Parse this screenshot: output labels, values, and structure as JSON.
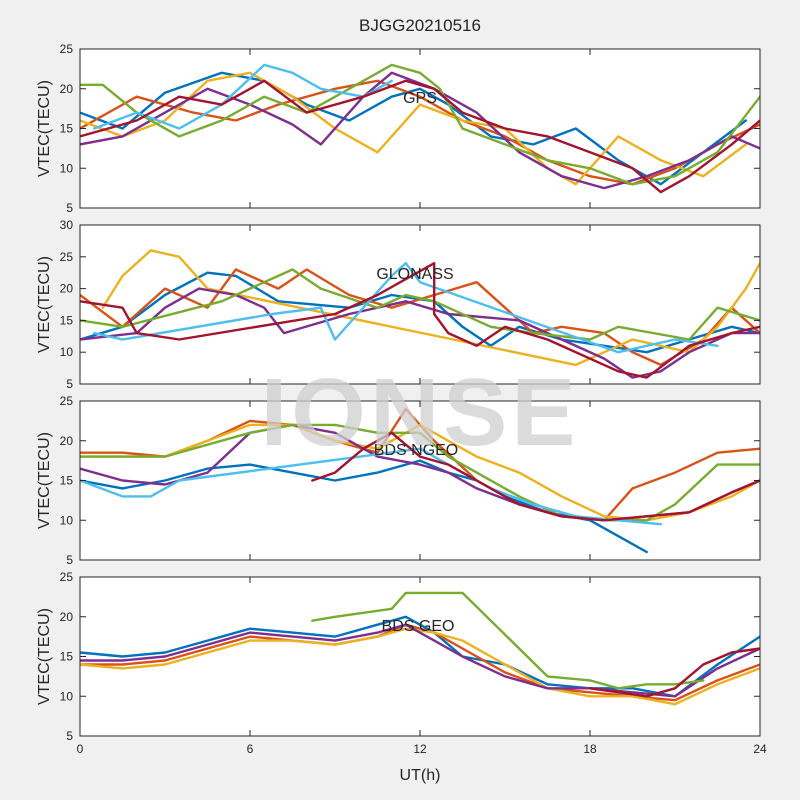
{
  "figure": {
    "title": "BJGG20210516",
    "xlabel": "UT(h)",
    "watermark": "IONSE"
  },
  "chart_data": [
    {
      "type": "line",
      "panel_label": "GPS",
      "ylabel": "VTEC(TECU)",
      "xlim": [
        0,
        24
      ],
      "ylim": [
        5,
        25
      ],
      "xticks": [
        0,
        6,
        12,
        18,
        24
      ],
      "yticks": [
        5,
        10,
        15,
        20,
        25
      ],
      "grid": false,
      "series": [
        {
          "color": "#0072BD",
          "x": [
            0,
            1.5,
            3,
            5,
            6.5,
            8,
            9.5,
            11,
            12,
            13,
            14.5,
            16,
            17.5,
            19,
            20.5,
            22,
            23.5
          ],
          "y": [
            17,
            15,
            19.5,
            22,
            21,
            18,
            16,
            19,
            20,
            18,
            14,
            13,
            15,
            11,
            8,
            12,
            16
          ]
        },
        {
          "color": "#D95319",
          "x": [
            0,
            2,
            4,
            5.5,
            7,
            9,
            10.5,
            12,
            13.5,
            15,
            16.5,
            18,
            19.5,
            21,
            22.5,
            24
          ],
          "y": [
            15,
            19,
            17,
            16,
            18,
            20,
            21,
            19,
            16,
            14,
            11,
            9,
            8,
            10,
            13,
            15.5
          ]
        },
        {
          "color": "#EDB120",
          "x": [
            0,
            1.5,
            3,
            4.5,
            6,
            7.5,
            9,
            10.5,
            12,
            13.5,
            15,
            16.5,
            17.5,
            19,
            20.5,
            22,
            23.5
          ],
          "y": [
            16,
            14,
            16,
            21,
            22,
            19,
            15,
            12,
            18,
            16,
            15,
            10,
            8,
            14,
            11,
            9,
            13
          ]
        },
        {
          "color": "#7E2F8E",
          "x": [
            0,
            1.5,
            3,
            4.5,
            6,
            7.5,
            8.5,
            10,
            11,
            12.5,
            14,
            15.5,
            17,
            18.5,
            20,
            21.5,
            23,
            24
          ],
          "y": [
            13,
            14,
            17,
            20,
            18,
            15.5,
            13,
            19,
            22,
            20,
            17,
            12,
            9,
            7.5,
            9,
            11,
            14,
            12.5
          ]
        },
        {
          "color": "#77AC30",
          "x": [
            0,
            0.8,
            2,
            3.5,
            5,
            6.5,
            8,
            9.5,
            11,
            12,
            12.7,
            13.5,
            15,
            16.5,
            18,
            19.5,
            21,
            22.5,
            24
          ],
          "y": [
            20.5,
            20.5,
            17,
            14,
            16,
            19,
            17,
            20,
            23,
            22,
            20,
            15,
            13,
            11,
            10,
            8,
            9,
            12,
            19
          ]
        },
        {
          "color": "#4DBEEE",
          "x": [
            0.5,
            2,
            3.5,
            5,
            6.5,
            7.5,
            8.5,
            10,
            11
          ],
          "y": [
            15,
            17,
            15,
            18,
            23,
            22,
            20,
            19,
            21
          ]
        },
        {
          "color": "#A2142F",
          "x": [
            0,
            2,
            3.5,
            5,
            6.5,
            8,
            10,
            11.5,
            12.5,
            13.5,
            15,
            16.5,
            18,
            19.5,
            20.5,
            21.5,
            23,
            24
          ],
          "y": [
            14,
            16,
            19,
            18,
            21,
            17,
            19,
            21,
            20,
            17,
            15,
            14,
            12,
            10,
            7,
            9,
            13,
            16
          ]
        }
      ]
    },
    {
      "type": "line",
      "panel_label": "GLONASS",
      "ylabel": "VTEC(TECU)",
      "xlim": [
        0,
        24
      ],
      "ylim": [
        5,
        30
      ],
      "xticks": [
        0,
        6,
        12,
        18,
        24
      ],
      "yticks": [
        5,
        10,
        15,
        20,
        25,
        30
      ],
      "grid": false,
      "series": [
        {
          "color": "#0072BD",
          "x": [
            0,
            1.5,
            3,
            4.5,
            5.5,
            7,
            9.5,
            11,
            12.5,
            13.5,
            14.5,
            15.5,
            17,
            18.5,
            20,
            21.5,
            23,
            24
          ],
          "y": [
            12,
            14,
            19,
            22.5,
            22,
            18,
            17,
            19,
            18,
            14,
            11,
            14,
            12,
            11,
            10,
            12,
            14,
            13
          ]
        },
        {
          "color": "#D95319",
          "x": [
            0,
            1.5,
            3,
            4.5,
            5.5,
            7,
            8,
            9.5,
            11,
            12.5,
            14,
            15,
            16,
            17,
            18.5,
            19.5,
            20.5,
            22,
            23,
            24
          ],
          "y": [
            19,
            14,
            20,
            17,
            23,
            20,
            23,
            19,
            17,
            19,
            21,
            17,
            13,
            14,
            13,
            10,
            8,
            12,
            17,
            13
          ]
        },
        {
          "color": "#EDB120",
          "x": [
            0.8,
            1.5,
            2.5,
            3.5,
            4.5,
            17.5,
            18.5,
            19.5,
            20.5,
            21.5,
            22.5,
            23.5,
            24
          ],
          "y": [
            17,
            22,
            26,
            25,
            20,
            8,
            10,
            12,
            11,
            10,
            14,
            20,
            24
          ]
        },
        {
          "color": "#7E2F8E",
          "x": [
            0,
            2,
            3,
            4.2,
            5.5,
            6.5,
            7.2,
            9.5,
            10.5,
            11.5,
            13,
            15.5,
            17,
            18.5,
            19.5,
            20.5,
            21.5,
            23,
            24
          ],
          "y": [
            12,
            13,
            17,
            20,
            19,
            17,
            13,
            16,
            17,
            18,
            16,
            15,
            12,
            9,
            6,
            7,
            10,
            13,
            13
          ]
        },
        {
          "color": "#77AC30",
          "x": [
            0,
            1.5,
            5,
            6.5,
            7.5,
            8.5,
            10.5,
            11.5,
            12.5,
            14.5,
            16,
            18,
            19,
            21.5,
            22.5,
            24
          ],
          "y": [
            15,
            14,
            18,
            21,
            23,
            20,
            17,
            19,
            18,
            14,
            13,
            12,
            14,
            12,
            17,
            15
          ]
        },
        {
          "color": "#4DBEEE",
          "x": [
            0.5,
            1.5,
            6.8,
            8.5,
            9,
            10,
            11,
            11.5,
            12,
            19,
            20,
            21,
            22.5
          ],
          "y": [
            13,
            12,
            16,
            17,
            12,
            17,
            22,
            24,
            21,
            10,
            11,
            12,
            11
          ]
        },
        {
          "color": "#A2142F",
          "x": [
            0,
            1.5,
            2,
            3.5,
            9,
            10.5,
            12.5,
            12.5,
            13,
            13.5,
            14,
            15,
            16.5,
            19,
            20,
            21.5,
            23,
            24
          ],
          "y": [
            18,
            17,
            13,
            12,
            16,
            19,
            24,
            16,
            13,
            12,
            11,
            14,
            12,
            7,
            6,
            11,
            13,
            14
          ]
        }
      ]
    },
    {
      "type": "line",
      "panel_label": "BDS NGEO",
      "ylabel": "VTEC(TECU)",
      "xlim": [
        0,
        24
      ],
      "ylim": [
        5,
        25
      ],
      "xticks": [
        0,
        6,
        12,
        18,
        24
      ],
      "yticks": [
        5,
        10,
        15,
        20,
        25
      ],
      "grid": false,
      "series": [
        {
          "color": "#0072BD",
          "x": [
            0,
            1.5,
            3,
            4.5,
            6,
            7.5,
            9,
            10.5,
            12,
            13,
            14,
            15,
            16.5,
            18,
            19.5,
            20
          ],
          "y": [
            15,
            14,
            15,
            16.5,
            17,
            16,
            15,
            16,
            17.5,
            16,
            15,
            13,
            11,
            10,
            7,
            6
          ]
        },
        {
          "color": "#D95319",
          "x": [
            0,
            1.5,
            3,
            4.5,
            6,
            7.5,
            9,
            10.5,
            11.5,
            12.5,
            14,
            15.5,
            17,
            18.5,
            19.5,
            21,
            22.5,
            24
          ],
          "y": [
            18.5,
            18.5,
            18,
            20,
            22.5,
            22,
            20,
            18.5,
            24,
            20,
            15,
            12,
            10.5,
            10,
            14,
            16,
            18.5,
            19
          ]
        },
        {
          "color": "#EDB120",
          "x": [
            0,
            1.5,
            3,
            4.5,
            6,
            7.5,
            9,
            10.5,
            12,
            13,
            14,
            15.5,
            17,
            18.5,
            20,
            21.5,
            23,
            24
          ],
          "y": [
            18,
            18,
            18,
            20,
            22,
            22,
            20,
            19,
            22,
            20,
            18,
            16,
            13,
            10.5,
            10,
            11,
            13,
            15
          ]
        },
        {
          "color": "#7E2F8E",
          "x": [
            0,
            1.5,
            3,
            4.5,
            6,
            7.5,
            9,
            10.5,
            12,
            13,
            14,
            15.5,
            17,
            18.5,
            20,
            21.5,
            23,
            24
          ],
          "y": [
            16.5,
            15,
            14.5,
            16,
            21,
            22,
            21,
            18,
            17,
            16,
            14,
            12,
            10.5,
            10,
            10.5,
            11,
            13.5,
            15
          ]
        },
        {
          "color": "#77AC30",
          "x": [
            0,
            1.5,
            3,
            4.5,
            6,
            7.5,
            9,
            10.5,
            12,
            13,
            14,
            15.5,
            17,
            18.5,
            20,
            21,
            22.5,
            24
          ],
          "y": [
            18,
            18,
            18,
            19.5,
            21,
            22,
            22,
            21,
            21,
            18,
            16,
            13,
            10.5,
            10,
            10,
            12,
            17,
            17
          ]
        },
        {
          "color": "#4DBEEE",
          "x": [
            0,
            1.5,
            2.5,
            3.5,
            12,
            13,
            14.5,
            16,
            17.5,
            19,
            20.5
          ],
          "y": [
            15,
            13,
            13,
            15,
            19,
            17,
            14,
            12,
            10.5,
            10,
            9.5
          ]
        },
        {
          "color": "#A2142F",
          "x": [
            8.2,
            9,
            10,
            11,
            12,
            13,
            14,
            15.5,
            17,
            18.5,
            20,
            21.5,
            23,
            24
          ],
          "y": [
            15,
            16,
            19,
            21,
            18,
            17,
            15,
            12,
            10.5,
            10,
            10.5,
            11,
            13.5,
            15
          ]
        }
      ]
    },
    {
      "type": "line",
      "panel_label": "BDS GEO",
      "ylabel": "VTEC(TECU)",
      "xlim": [
        0,
        24
      ],
      "ylim": [
        5,
        25
      ],
      "xticks": [
        0,
        6,
        12,
        18,
        24
      ],
      "yticks": [
        5,
        10,
        15,
        20,
        25
      ],
      "grid": false,
      "series": [
        {
          "color": "#0072BD",
          "x": [
            0,
            1.5,
            3,
            4.5,
            6,
            7.5,
            9,
            10.5,
            11.5,
            12.5,
            13.5,
            15,
            16.5,
            18,
            19.5,
            21,
            22.5,
            24
          ],
          "y": [
            15.5,
            15,
            15.5,
            17,
            18.5,
            18,
            17.5,
            19,
            20,
            18,
            15,
            14,
            11.5,
            11,
            11,
            10,
            14,
            17.5
          ]
        },
        {
          "color": "#D95319",
          "x": [
            0,
            1.5,
            3,
            4.5,
            6,
            7.5,
            9,
            10.5,
            11.5,
            12.5,
            13.5,
            15,
            16.5,
            18,
            19.5,
            21,
            22.5,
            24
          ],
          "y": [
            14,
            14,
            14.5,
            16,
            17.5,
            17,
            16.5,
            17.5,
            19,
            18,
            16,
            13,
            11,
            10.5,
            10,
            9.5,
            12,
            14
          ]
        },
        {
          "color": "#EDB120",
          "x": [
            0,
            1.5,
            3,
            4.5,
            6,
            7.5,
            9,
            10.5,
            11.5,
            12.5,
            13.5,
            15,
            16.5,
            18,
            19.5,
            21,
            22.5,
            24
          ],
          "y": [
            14,
            13.5,
            14,
            15.5,
            17,
            17,
            16.5,
            17.5,
            18.5,
            18,
            17,
            14,
            11,
            10,
            10,
            9,
            11.5,
            13.5
          ]
        },
        {
          "color": "#7E2F8E",
          "x": [
            0,
            1.5,
            3,
            4.5,
            6,
            7.5,
            9,
            10.5,
            11.5,
            12.5,
            13.5,
            15,
            16.5,
            18,
            19.5,
            21,
            22.5,
            24
          ],
          "y": [
            14.5,
            14.5,
            15,
            16.5,
            18,
            17.5,
            17,
            18,
            19,
            17,
            15,
            12.5,
            11,
            11,
            10.5,
            10,
            13.5,
            16
          ]
        },
        {
          "color": "#77AC30",
          "x": [
            8.2,
            9,
            10,
            11,
            11.5,
            12,
            13.5,
            16.5,
            18,
            19,
            20,
            21,
            22
          ],
          "y": [
            19.5,
            20,
            20.5,
            21,
            23,
            23,
            23,
            12.5,
            12,
            11,
            11.5,
            11.5,
            12
          ]
        },
        {
          "color": "#A2142F",
          "x": [
            18,
            19,
            20,
            21,
            22,
            23,
            24
          ],
          "y": [
            11,
            10.5,
            10,
            11,
            14,
            15.5,
            16
          ]
        }
      ]
    }
  ]
}
